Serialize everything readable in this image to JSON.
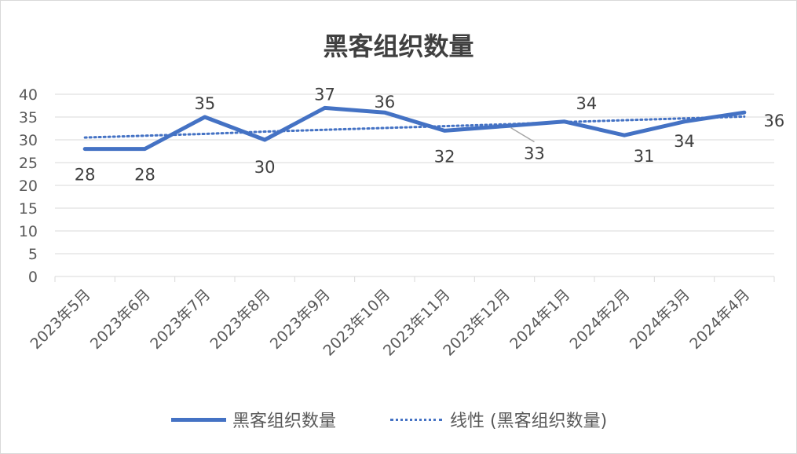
{
  "chart_data": {
    "type": "line",
    "title": "黑客组织数量",
    "categories": [
      "2023年5月",
      "2023年6月",
      "2023年7月",
      "2023年8月",
      "2023年9月",
      "2023年10月",
      "2023年11月",
      "2023年12月",
      "2024年1月",
      "2024年2月",
      "2024年3月",
      "2024年4月"
    ],
    "series": [
      {
        "name": "黑客组织数量",
        "values": [
          28,
          28,
          35,
          30,
          37,
          36,
          32,
          33,
          34,
          31,
          34,
          36
        ],
        "color": "#4472c4",
        "style": "solid"
      },
      {
        "name": "线性 (黑客组织数量)",
        "values": [
          30.5,
          30.9,
          31.3,
          31.8,
          32.2,
          32.6,
          33.0,
          33.4,
          33.9,
          34.3,
          34.7,
          35.1
        ],
        "color": "#4472c4",
        "style": "dotted"
      }
    ],
    "ylim": [
      0,
      40
    ],
    "yticks": [
      0,
      5,
      10,
      15,
      20,
      25,
      30,
      35,
      40
    ],
    "data_labels": [
      "28",
      "28",
      "35",
      "30",
      "37",
      "36",
      "32",
      "33",
      "34",
      "31",
      "34",
      "36"
    ],
    "grid": true,
    "legend_position": "bottom"
  }
}
